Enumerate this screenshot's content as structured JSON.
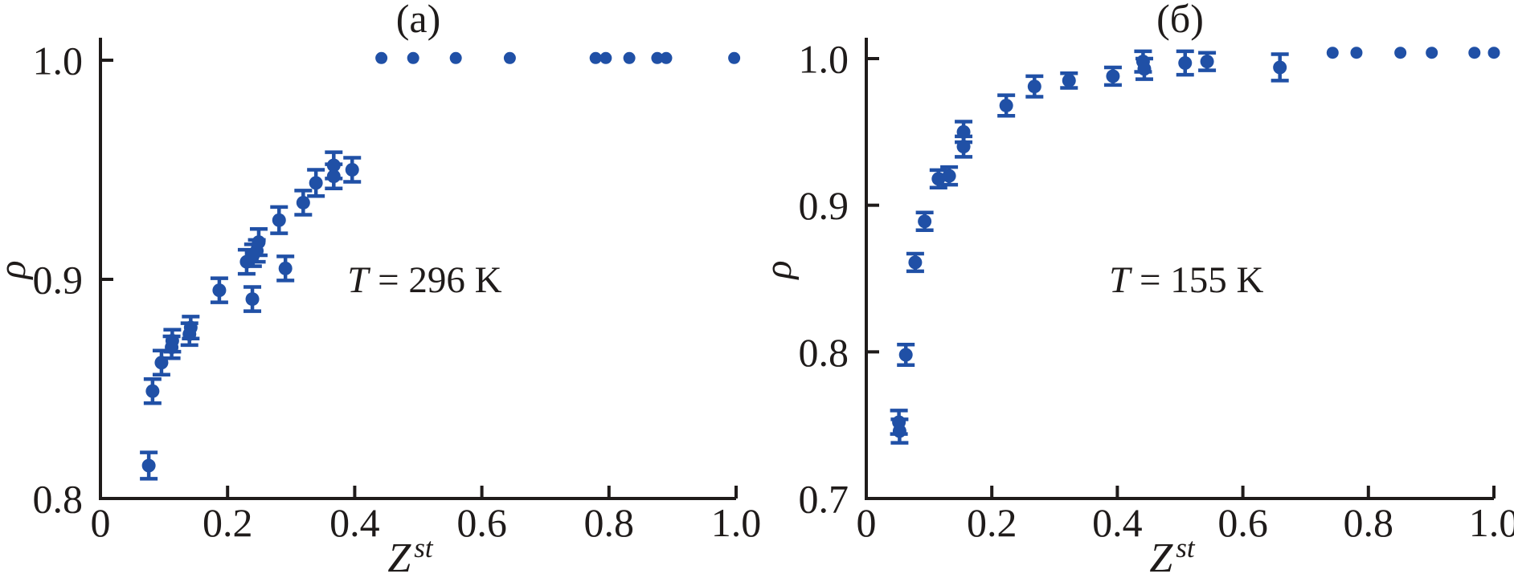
{
  "figure": {
    "background": "#ffffff",
    "axis_color": "#1f1b1a",
    "marker_color": "#2050a6"
  },
  "chart_data": [
    {
      "type": "scatter",
      "panel_label": "(a)",
      "annotation": {
        "variable": "T",
        "rest": " = 296 K"
      },
      "xlabel": {
        "base": "Z",
        "sup": "st"
      },
      "ylabel": "ρ",
      "xlim": [
        0,
        1.0
      ],
      "ylim": [
        0.8,
        1.0
      ],
      "xticks": [
        0,
        0.2,
        0.4,
        0.6,
        0.8,
        1.0
      ],
      "xtick_labels": [
        "0",
        "0.2",
        "0.4",
        "0.6",
        "0.8",
        "1.0"
      ],
      "yticks": [
        0.8,
        0.9,
        1.0
      ],
      "ytick_labels": [
        "0.8",
        "0.9",
        "1.0"
      ],
      "legend": "none",
      "grid": false,
      "marker_color": "#2050a6",
      "points_format": [
        "x",
        "y",
        "err"
      ],
      "points": [
        [
          0.076,
          0.815,
          0.006
        ],
        [
          0.082,
          0.849,
          0.0055
        ],
        [
          0.096,
          0.862,
          0.0055
        ],
        [
          0.112,
          0.869,
          0.005
        ],
        [
          0.113,
          0.872,
          0.005
        ],
        [
          0.14,
          0.875,
          0.005
        ],
        [
          0.142,
          0.878,
          0.005
        ],
        [
          0.187,
          0.895,
          0.0055
        ],
        [
          0.23,
          0.908,
          0.0055
        ],
        [
          0.239,
          0.891,
          0.0055
        ],
        [
          0.24,
          0.911,
          0.005
        ],
        [
          0.246,
          0.913,
          0.005
        ],
        [
          0.249,
          0.917,
          0.006
        ],
        [
          0.281,
          0.927,
          0.006
        ],
        [
          0.291,
          0.905,
          0.0055
        ],
        [
          0.319,
          0.935,
          0.0055
        ],
        [
          0.339,
          0.944,
          0.006
        ],
        [
          0.367,
          0.947,
          0.0055
        ],
        [
          0.367,
          0.952,
          0.006
        ],
        [
          0.396,
          0.95,
          0.0055
        ],
        [
          0.442,
          1.001,
          0
        ],
        [
          0.492,
          1.001,
          0
        ],
        [
          0.559,
          1.001,
          0
        ],
        [
          0.644,
          1.001,
          0
        ],
        [
          0.779,
          1.001,
          0
        ],
        [
          0.795,
          1.001,
          0
        ],
        [
          0.832,
          1.001,
          0
        ],
        [
          0.876,
          1.001,
          0
        ],
        [
          0.89,
          1.001,
          0
        ],
        [
          0.997,
          1.001,
          0
        ]
      ]
    },
    {
      "type": "scatter",
      "panel_label": "(б)",
      "annotation": {
        "variable": "T",
        "rest": " = 155 K"
      },
      "xlabel": {
        "base": "Z",
        "sup": "st"
      },
      "ylabel": "ρ",
      "xlim": [
        0,
        1.0
      ],
      "ylim": [
        0.7,
        1.0
      ],
      "xticks": [
        0,
        0.2,
        0.4,
        0.6,
        0.8,
        1.0
      ],
      "xtick_labels": [
        "0",
        "0.2",
        "0.4",
        "0.6",
        "0.8",
        "1.0"
      ],
      "yticks": [
        0.7,
        0.8,
        0.9,
        1.0
      ],
      "ytick_labels": [
        "0.7",
        "0.8",
        "0.9",
        "1.0"
      ],
      "legend": "none",
      "grid": false,
      "marker_color": "#2050a6",
      "points_format": [
        "x",
        "y",
        "err"
      ],
      "points": [
        [
          0.052,
          0.752,
          0.008
        ],
        [
          0.053,
          0.746,
          0.008
        ],
        [
          0.063,
          0.798,
          0.007
        ],
        [
          0.078,
          0.861,
          0.006
        ],
        [
          0.093,
          0.889,
          0.006
        ],
        [
          0.115,
          0.918,
          0.006
        ],
        [
          0.132,
          0.92,
          0.006
        ],
        [
          0.155,
          0.94,
          0.007
        ],
        [
          0.155,
          0.95,
          0.007
        ],
        [
          0.223,
          0.968,
          0.007
        ],
        [
          0.268,
          0.981,
          0.007
        ],
        [
          0.323,
          0.985,
          0.005
        ],
        [
          0.393,
          0.988,
          0.006
        ],
        [
          0.441,
          0.998,
          0.007
        ],
        [
          0.443,
          0.993,
          0.007
        ],
        [
          0.508,
          0.997,
          0.008
        ],
        [
          0.543,
          0.998,
          0.006
        ],
        [
          0.659,
          0.994,
          0.009
        ],
        [
          0.743,
          1.004,
          0
        ],
        [
          0.781,
          1.004,
          0
        ],
        [
          0.851,
          1.004,
          0
        ],
        [
          0.901,
          1.004,
          0
        ],
        [
          0.969,
          1.004,
          0
        ],
        [
          1.0,
          1.004,
          0
        ]
      ]
    }
  ]
}
